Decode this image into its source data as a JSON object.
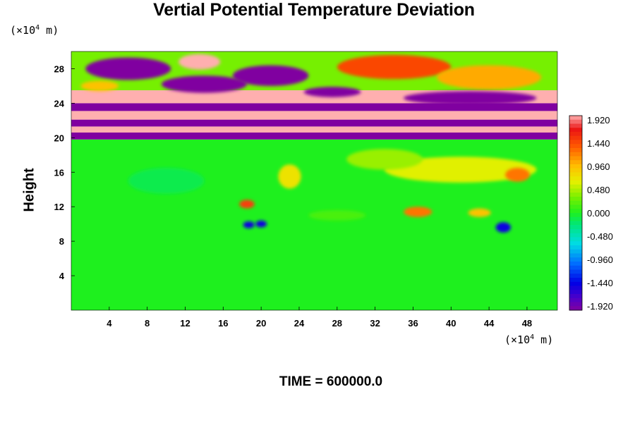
{
  "chart_data": {
    "type": "heatmap",
    "title": "Vertial Potential Temperature Deviation",
    "ylabel": "Height",
    "x_unit": {
      "base": "(×10",
      "exp": "4",
      "rest": " m)"
    },
    "y_unit": {
      "base": "(×10",
      "exp": "4",
      "rest": " m)"
    },
    "xlim": [
      0,
      51.2
    ],
    "ylim": [
      0,
      30
    ],
    "x_ticks": [
      4,
      8,
      12,
      16,
      20,
      24,
      28,
      32,
      36,
      40,
      44,
      48
    ],
    "x_tick_labels": [
      "4",
      "8",
      "12",
      "16",
      "20",
      "24",
      "28",
      "32",
      "36",
      "40",
      "44",
      "48"
    ],
    "y_ticks": [
      4,
      8,
      12,
      16,
      20,
      24,
      28
    ],
    "y_tick_labels": [
      "4",
      "8",
      "12",
      "16",
      "20",
      "24",
      "28"
    ],
    "colorbar": {
      "min": -1.92,
      "max": 1.92,
      "labels": [
        "1.920",
        "1.440",
        "0.960",
        "0.480",
        "0.000",
        "-0.480",
        "-0.960",
        "-1.440",
        "-1.920"
      ]
    },
    "field_bands": [
      {
        "y_min": 0,
        "y_max": 19.8,
        "value": 0.0
      },
      {
        "y_min": 19.8,
        "y_max": 20.6,
        "value": -1.92
      },
      {
        "y_min": 20.6,
        "y_max": 21.3,
        "value": 1.92
      },
      {
        "y_min": 21.3,
        "y_max": 22.1,
        "value": -1.92
      },
      {
        "y_min": 22.1,
        "y_max": 23.1,
        "value": 1.92
      },
      {
        "y_min": 23.1,
        "y_max": 24.0,
        "value": -1.92
      },
      {
        "y_min": 24.0,
        "y_max": 25.5,
        "value": 1.92
      },
      {
        "y_min": 25.5,
        "y_max": 30.0,
        "value": 0.3
      }
    ],
    "features": [
      {
        "x": 13.5,
        "y": 28.8,
        "rx": 2.2,
        "ry": 0.9,
        "value": 1.92
      },
      {
        "x": 6.0,
        "y": 28.0,
        "rx": 4.5,
        "ry": 1.3,
        "value": -1.92
      },
      {
        "x": 14.0,
        "y": 26.2,
        "rx": 4.5,
        "ry": 1.0,
        "value": -1.92
      },
      {
        "x": 21.0,
        "y": 27.2,
        "rx": 4.0,
        "ry": 1.2,
        "value": -1.92
      },
      {
        "x": 34.0,
        "y": 28.2,
        "rx": 6.0,
        "ry": 1.4,
        "value": 1.4
      },
      {
        "x": 44.0,
        "y": 27.0,
        "rx": 5.5,
        "ry": 1.4,
        "value": 1.0
      },
      {
        "x": 42.0,
        "y": 24.6,
        "rx": 7.0,
        "ry": 0.8,
        "value": -1.92
      },
      {
        "x": 27.5,
        "y": 25.3,
        "rx": 3.0,
        "ry": 0.6,
        "value": -1.92
      },
      {
        "x": 3.0,
        "y": 26.0,
        "rx": 2.0,
        "ry": 0.6,
        "value": 0.9
      },
      {
        "x": 41.0,
        "y": 16.3,
        "rx": 8.0,
        "ry": 1.5,
        "value": 0.6
      },
      {
        "x": 33.0,
        "y": 17.5,
        "rx": 4.0,
        "ry": 1.2,
        "value": 0.4
      },
      {
        "x": 23.0,
        "y": 15.5,
        "rx": 1.2,
        "ry": 1.4,
        "value": 0.7
      },
      {
        "x": 47.0,
        "y": 15.7,
        "rx": 1.3,
        "ry": 0.8,
        "value": 1.2
      },
      {
        "x": 18.5,
        "y": 12.3,
        "rx": 0.8,
        "ry": 0.5,
        "value": 1.44
      },
      {
        "x": 36.5,
        "y": 11.4,
        "rx": 1.5,
        "ry": 0.6,
        "value": 1.2
      },
      {
        "x": 43.0,
        "y": 11.3,
        "rx": 1.2,
        "ry": 0.5,
        "value": 0.9
      },
      {
        "x": 18.7,
        "y": 9.9,
        "rx": 0.6,
        "ry": 0.4,
        "value": -1.44
      },
      {
        "x": 20.0,
        "y": 10.0,
        "rx": 0.6,
        "ry": 0.4,
        "value": -1.44
      },
      {
        "x": 45.5,
        "y": 9.6,
        "rx": 0.8,
        "ry": 0.6,
        "value": -1.44
      },
      {
        "x": 28.0,
        "y": 11.0,
        "rx": 3.0,
        "ry": 0.6,
        "value": 0.15
      },
      {
        "x": 10.0,
        "y": 15.0,
        "rx": 4.0,
        "ry": 1.5,
        "value": -0.12
      }
    ]
  },
  "footer": {
    "label": "TIME = 600000.0"
  }
}
